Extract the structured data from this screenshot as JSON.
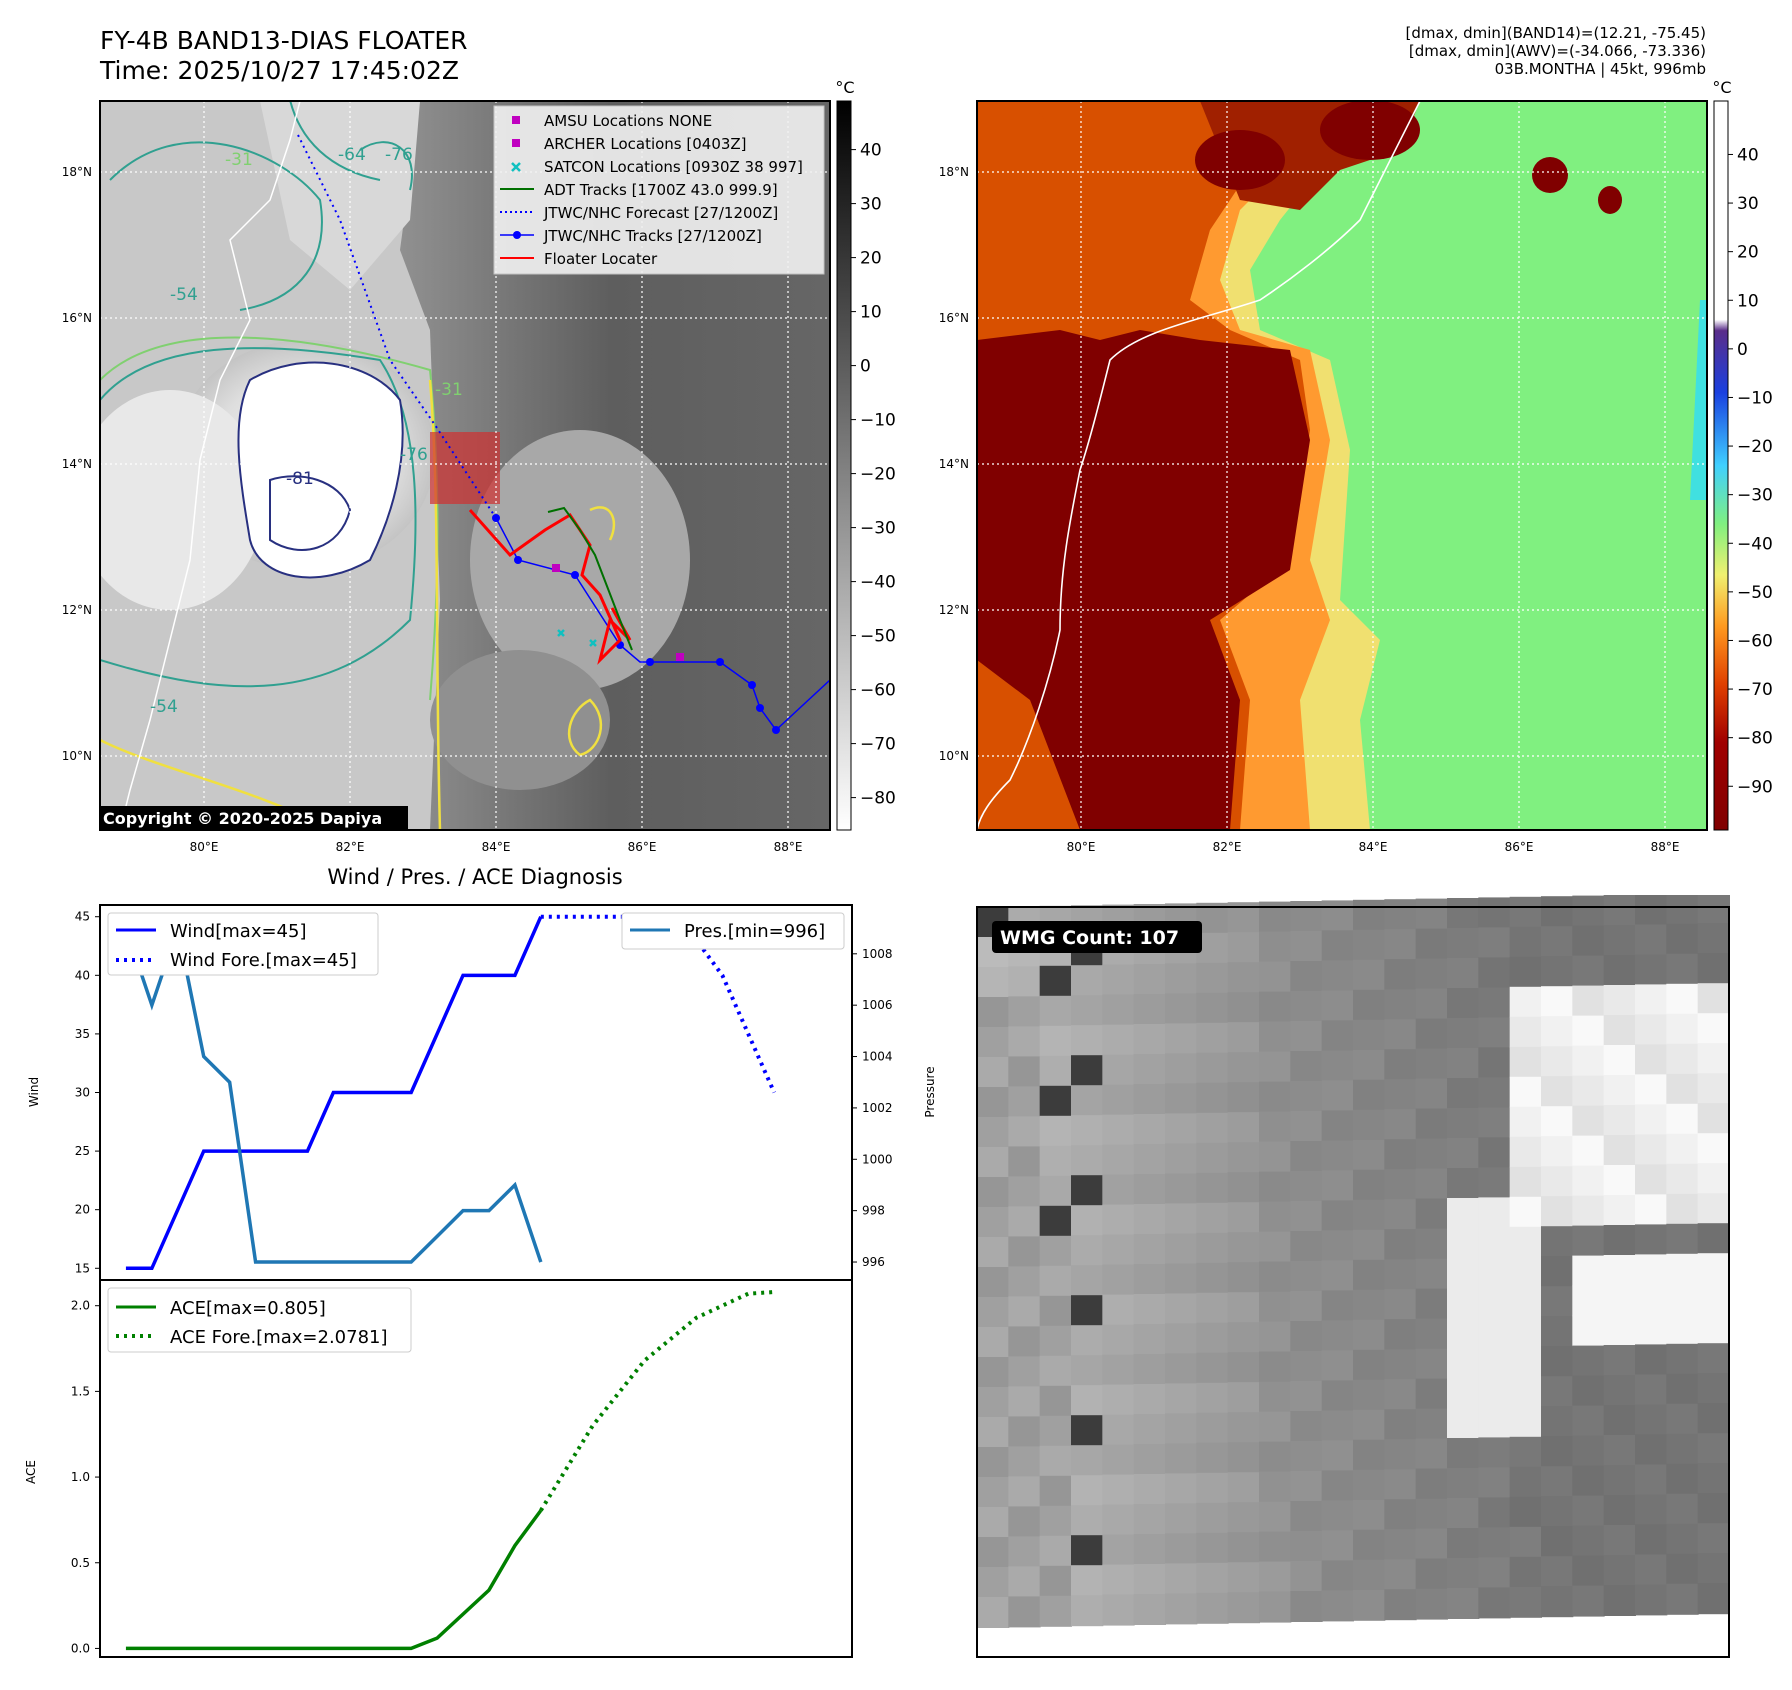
{
  "header": {
    "title_line1": "FY-4B BAND13-DIAS FLOATER",
    "title_line2": "Time: 2025/10/27 17:45:02Z",
    "info_line1": "[dmax, dmin](BAND14)=(12.21, -75.45)",
    "info_line2": "[dmax, dmin](AWV)=(-34.066, -73.336)",
    "info_line3": "03B.MONTHA | 45kt, 996mb"
  },
  "map": {
    "lon_labels": [
      "80°E",
      "82°E",
      "84°E",
      "86°E",
      "88°E"
    ],
    "lat_labels": [
      "18°N",
      "16°N",
      "14°N",
      "12°N",
      "10°N"
    ],
    "contour_labels": [
      "-31",
      "-54",
      "-64",
      "-76",
      "-81",
      "-54",
      "-76",
      "-31"
    ],
    "copyright": "Copyright © 2020-2025 Dapiya",
    "legend": [
      {
        "label": "AMSU Locations NONE",
        "color": "#c000c0",
        "marker": "square"
      },
      {
        "label": "ARCHER Locations [0403Z]",
        "color": "#c000c0",
        "marker": "square"
      },
      {
        "label": "SATCON Locations [0930Z 38 997]",
        "color": "#10c0c0",
        "marker": "x"
      },
      {
        "label": "ADT Tracks [1700Z 43.0 999.9]",
        "color": "#007000",
        "marker": "line"
      },
      {
        "label": "JTWC/NHC Forecast [27/1200Z]",
        "color": "#0000ff",
        "marker": "dotted"
      },
      {
        "label": "JTWC/NHC Tracks [27/1200Z]",
        "color": "#0000ff",
        "marker": "line-dot"
      },
      {
        "label": "Floater Locater",
        "color": "#ff0000",
        "marker": "line"
      }
    ],
    "gray_colorbar": {
      "unit": "°C",
      "ticks": [
        40,
        30,
        20,
        10,
        0,
        -10,
        -20,
        -30,
        -40,
        -50,
        -60,
        -70,
        -80
      ]
    },
    "color_colorbar": {
      "unit": "°C",
      "ticks": [
        40,
        30,
        20,
        10,
        0,
        -10,
        -20,
        -30,
        -40,
        -50,
        -60,
        -70,
        -80,
        -90
      ]
    },
    "colors": {
      "deep_red": "#800000",
      "light_green": "#80f080",
      "track_blue": "#0000ff",
      "locater_red": "#ff0000"
    }
  },
  "chart_data": [
    {
      "type": "line",
      "title": "Wind / Pres. / ACE Diagnosis",
      "ylabel": "Wind",
      "y2label": "Pressure",
      "ylim": [
        14,
        46
      ],
      "y2lim": [
        995.3,
        1009.9
      ],
      "yticks": [
        15,
        20,
        25,
        30,
        35,
        40,
        45
      ],
      "y2ticks": [
        996,
        998,
        1000,
        1002,
        1004,
        1006,
        1008
      ],
      "legend_left": [
        "Wind[max=45]",
        "Wind Fore.[max=45]"
      ],
      "legend_right": [
        "Pres.[min=996]"
      ],
      "series": [
        {
          "name": "Wind[max=45]",
          "axis": "left",
          "style": "solid",
          "color": "#0000ff",
          "x": [
            0,
            1,
            3,
            4,
            7,
            8,
            11,
            13,
            15,
            16
          ],
          "values": [
            15,
            15,
            25,
            25,
            25,
            30,
            30,
            40,
            40,
            45
          ]
        },
        {
          "name": "Wind Fore.[max=45]",
          "axis": "left",
          "style": "dotted",
          "color": "#0000ff",
          "x": [
            16,
            18,
            20,
            21,
            22,
            23,
            24,
            25
          ],
          "values": [
            45,
            45,
            45,
            45,
            43,
            40,
            35,
            30
          ]
        },
        {
          "name": "Pres.[min=996]",
          "axis": "right",
          "style": "solid",
          "color": "#1f77b4",
          "x": [
            0,
            1,
            2,
            3,
            4,
            5,
            6,
            8,
            10,
            11,
            12,
            13,
            14,
            15,
            16
          ],
          "values": [
            1009,
            1006,
            1009,
            1004,
            1003,
            996,
            996,
            996,
            996,
            996,
            997,
            998,
            998,
            999,
            996
          ]
        }
      ]
    },
    {
      "type": "line",
      "ylabel": "ACE",
      "ylim": [
        -0.05,
        2.15
      ],
      "yticks": [
        0.0,
        0.5,
        1.0,
        1.5,
        2.0
      ],
      "series": [
        {
          "name": "ACE[max=0.805]",
          "style": "solid",
          "color": "#008000",
          "x": [
            0,
            11,
            12,
            14,
            15,
            16
          ],
          "values": [
            0,
            0,
            0.06,
            0.34,
            0.6,
            0.805
          ]
        },
        {
          "name": "ACE Fore.[max=2.0781]",
          "style": "dotted",
          "color": "#008000",
          "x": [
            16,
            18,
            20,
            22,
            24,
            25
          ],
          "values": [
            0.805,
            1.3,
            1.68,
            1.93,
            2.07,
            2.08
          ]
        }
      ]
    }
  ],
  "wmg": {
    "label": "WMG Count: 107"
  }
}
